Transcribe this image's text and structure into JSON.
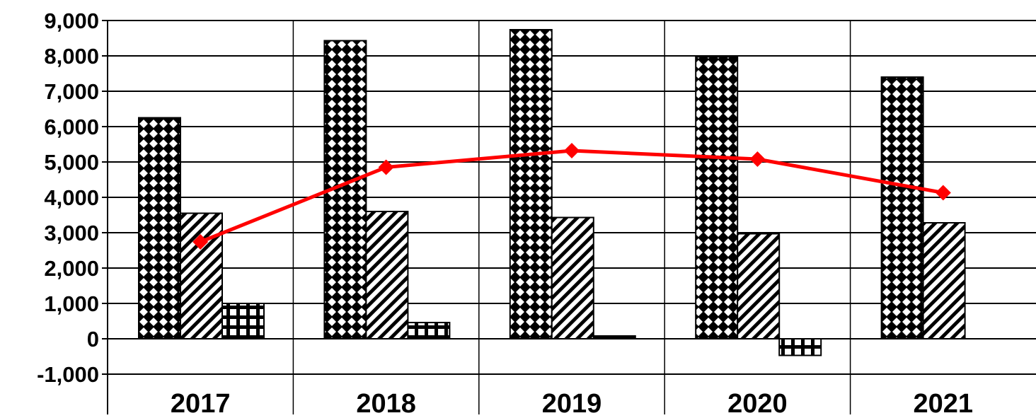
{
  "chart_data": {
    "type": "bar",
    "categories": [
      "2017",
      "2018",
      "2019",
      "2020",
      "2021"
    ],
    "series": [
      {
        "type": "bar",
        "pattern": "diamond-check",
        "values": [
          6250,
          8430,
          8740,
          7970,
          7400
        ]
      },
      {
        "type": "bar",
        "pattern": "diagonal-hatch",
        "values": [
          3550,
          3600,
          3430,
          2970,
          3280
        ]
      },
      {
        "type": "bar",
        "pattern": "grid",
        "values": [
          1000,
          460,
          80,
          -470,
          null
        ]
      },
      {
        "type": "line",
        "color": "#ff0000",
        "marker": "diamond",
        "values": [
          2740,
          4850,
          5320,
          5080,
          4130
        ]
      }
    ],
    "ylim": [
      -1000,
      9000
    ],
    "yticks": [
      -1000,
      0,
      1000,
      2000,
      3000,
      4000,
      5000,
      6000,
      7000,
      8000,
      9000
    ],
    "ytick_labels": [
      "-1,000",
      "0",
      "1,000",
      "2,000",
      "3,000",
      "4,000",
      "5,000",
      "6,000",
      "7,000",
      "8,000",
      "9,000"
    ],
    "grid": true,
    "title": "",
    "xlabel": "",
    "ylabel": ""
  }
}
